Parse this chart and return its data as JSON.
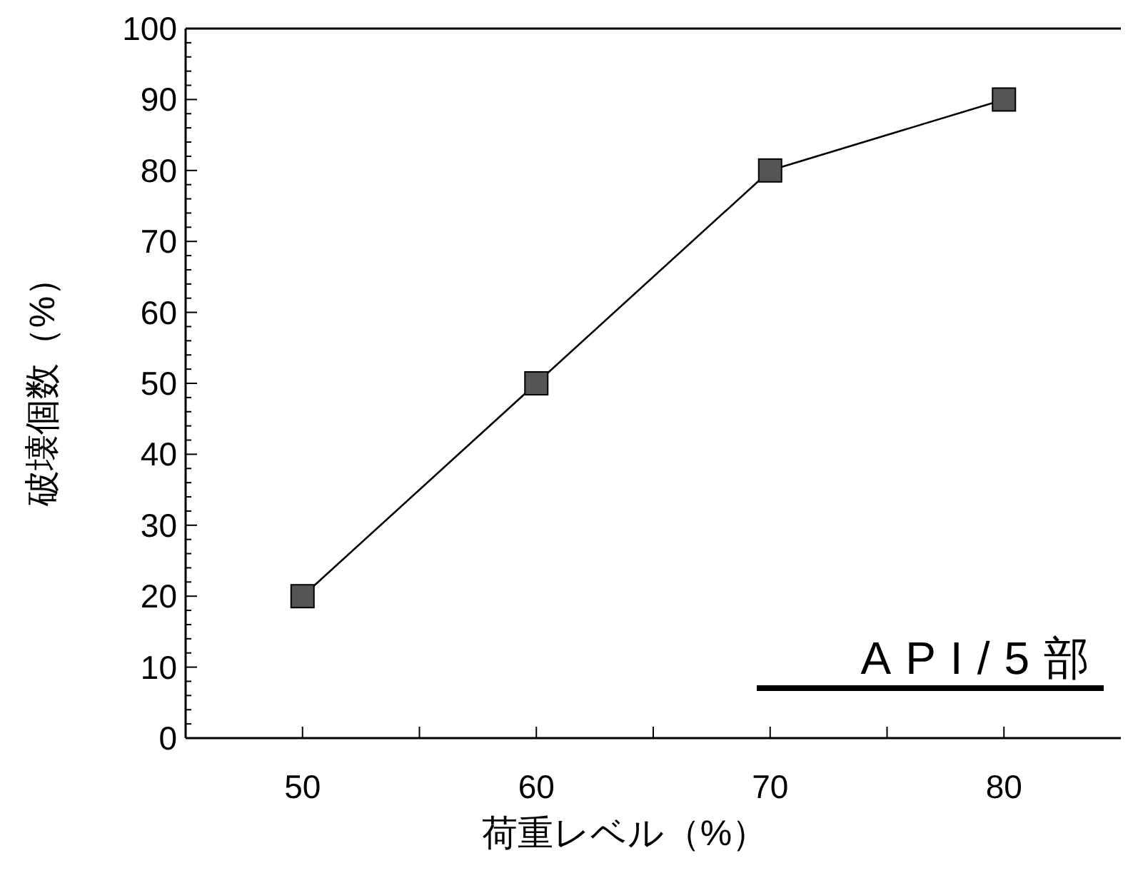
{
  "chart_data": {
    "type": "line",
    "xlabel": "荷重レベル（%）",
    "ylabel": "破壊個数（%）",
    "x": [
      50,
      60,
      70,
      80
    ],
    "series": [
      {
        "color": "#555555",
        "values": [
          20,
          50,
          80,
          90
        ]
      }
    ],
    "marker": "square",
    "line_style": "solid",
    "xlim": [
      45,
      85
    ],
    "ylim": [
      0,
      100
    ],
    "xticks": [
      50,
      {
        "value": 55,
        "label": null
      },
      60,
      {
        "value": 65,
        "label": null
      },
      70,
      {
        "value": 75,
        "label": null
      },
      80
    ],
    "yticks": [
      0,
      {
        "value": 2,
        "label": null
      },
      {
        "value": 4,
        "label": null
      },
      {
        "value": 6,
        "label": null
      },
      {
        "value": 8,
        "label": null
      },
      10,
      {
        "value": 12,
        "label": null
      },
      {
        "value": 14,
        "label": null
      },
      {
        "value": 16,
        "label": null
      },
      {
        "value": 18,
        "label": null
      },
      20,
      {
        "value": 22,
        "label": null
      },
      {
        "value": 24,
        "label": null
      },
      {
        "value": 26,
        "label": null
      },
      {
        "value": 28,
        "label": null
      },
      30,
      {
        "value": 32,
        "label": null
      },
      {
        "value": 34,
        "label": null
      },
      {
        "value": 36,
        "label": null
      },
      {
        "value": 38,
        "label": null
      },
      40,
      {
        "value": 42,
        "label": null
      },
      {
        "value": 44,
        "label": null
      },
      {
        "value": 46,
        "label": null
      },
      {
        "value": 48,
        "label": null
      },
      50,
      {
        "value": 52,
        "label": null
      },
      {
        "value": 54,
        "label": null
      },
      {
        "value": 56,
        "label": null
      },
      {
        "value": 58,
        "label": null
      },
      60,
      {
        "value": 62,
        "label": null
      },
      {
        "value": 64,
        "label": null
      },
      {
        "value": 66,
        "label": null
      },
      {
        "value": 68,
        "label": null
      },
      70,
      {
        "value": 72,
        "label": null
      },
      {
        "value": 74,
        "label": null
      },
      {
        "value": 76,
        "label": null
      },
      {
        "value": 78,
        "label": null
      },
      80,
      {
        "value": 82,
        "label": null
      },
      {
        "value": 84,
        "label": null
      },
      {
        "value": 86,
        "label": null
      },
      {
        "value": 88,
        "label": null
      },
      90,
      {
        "value": 92,
        "label": null
      },
      {
        "value": 94,
        "label": null
      },
      {
        "value": 96,
        "label": null
      },
      {
        "value": 98,
        "label": null
      },
      100
    ],
    "annotations": [
      "API/5部"
    ],
    "grid": false
  }
}
